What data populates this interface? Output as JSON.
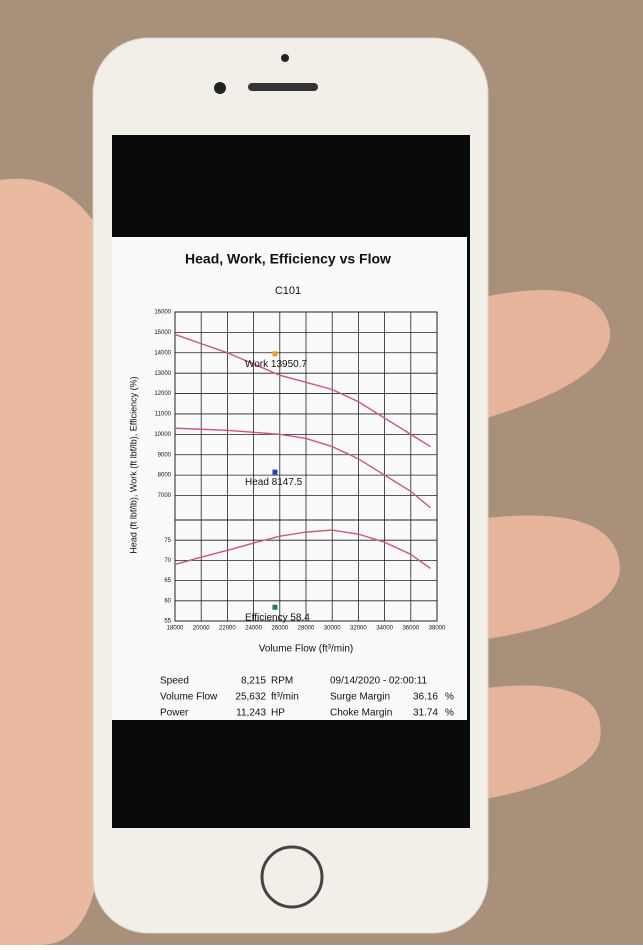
{
  "chart_data": {
    "type": "line",
    "title": "Head, Work, Efficiency vs Flow",
    "subtitle": "C101",
    "x_label": "Volume Flow (ft³/min)",
    "y_label": "Head (ft lbf/lb), Work (ft lbf/lb), Efficiency (%)",
    "x": [
      18000,
      20000,
      22000,
      24000,
      26000,
      28000,
      30000,
      32000,
      34000,
      36000,
      37500
    ],
    "series": [
      {
        "name": "Work",
        "color": "#cc5a6a",
        "values": [
          14900,
          14450,
          14000,
          13450,
          12900,
          12550,
          12200,
          11600,
          10800,
          10000,
          9400
        ]
      },
      {
        "name": "Head",
        "color": "#cc5a6a",
        "values": [
          10300,
          10250,
          10200,
          10100,
          10000,
          9800,
          9400,
          8800,
          8000,
          7200,
          6400
        ]
      },
      {
        "name": "Efficiency",
        "color": "#cc5a6a",
        "axis": "y2",
        "values": [
          69,
          70.8,
          72.5,
          74.3,
          76,
          77,
          77.5,
          76.5,
          74.5,
          71.5,
          68
        ]
      }
    ],
    "markers": [
      {
        "name": "Work",
        "x": 25632,
        "value": 13950.7,
        "color": "#e8a020"
      },
      {
        "name": "Head",
        "x": 25632,
        "value": 8147.5,
        "color": "#2040c0"
      },
      {
        "name": "Efficiency",
        "x": 25632,
        "value": 58.4,
        "color": "#208040",
        "axis": "y2"
      }
    ],
    "xlim": [
      18000,
      38000
    ],
    "xticks": [
      18000,
      20000,
      22000,
      24000,
      26000,
      28000,
      30000,
      32000,
      34000,
      36000,
      38000
    ],
    "ylim": [
      5800,
      16000
    ],
    "yticks": [
      7000,
      8000,
      9000,
      10000,
      11000,
      12000,
      13000,
      14000,
      15000,
      16000
    ],
    "y2lim": [
      55,
      80
    ],
    "y2ticks": [
      55,
      60,
      65,
      70,
      75
    ],
    "grid": true,
    "stats": {
      "speed": {
        "label": "Speed",
        "value": "8,215",
        "unit": "RPM"
      },
      "flow": {
        "label": "Volume Flow",
        "value": "25,632",
        "unit": "ft³/min"
      },
      "power": {
        "label": "Power",
        "value": "11,243",
        "unit": "HP"
      },
      "timestamp": "09/14/2020 - 02:00:11",
      "surge": {
        "label": "Surge Margin",
        "value": "36.16",
        "unit": "%"
      },
      "choke": {
        "label": "Choke Margin",
        "value": "31.74",
        "unit": "%"
      }
    }
  }
}
